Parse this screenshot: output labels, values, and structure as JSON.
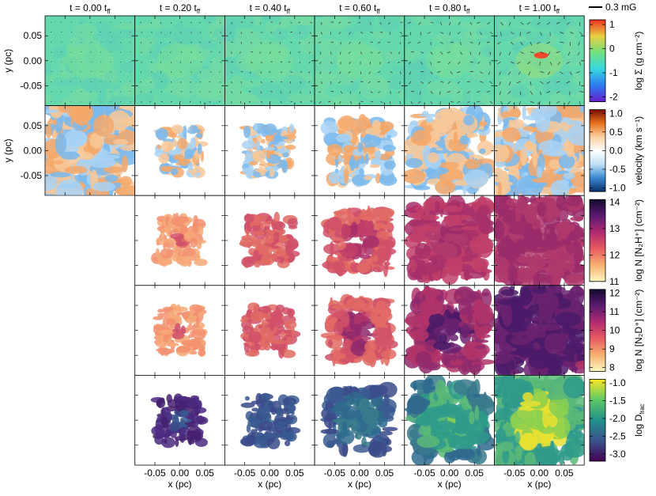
{
  "columns": [
    "t = 0.00 t",
    "t = 0.20 t",
    "t = 0.40 t",
    "t = 0.60 t",
    "t = 0.80 t",
    "t = 1.00 t"
  ],
  "column_sub": "ff",
  "scale_bar": "0.3 mG",
  "y_label": "y (pc)",
  "x_label": "x (pc)",
  "xlim": [
    -0.09,
    0.09
  ],
  "ylim": [
    -0.09,
    0.09
  ],
  "xticks": [
    {
      "value": -0.05,
      "label": "-0.05"
    },
    {
      "value": 0,
      "label": "0.00"
    },
    {
      "value": 0.05,
      "label": "0.05"
    }
  ],
  "yticks": [
    {
      "value": -0.05,
      "label": "-0.05"
    },
    {
      "value": 0,
      "label": "0.00"
    },
    {
      "value": 0.05,
      "label": "0.05"
    }
  ],
  "colorbars": [
    {
      "label": "log Σ (g cm⁻²)",
      "lim": [
        -2.2,
        1.2
      ],
      "ticks": [
        -2,
        -1,
        0,
        1
      ],
      "colors": [
        "#6a1fd0",
        "#2a7bf0",
        "#38d8e0",
        "#70e080",
        "#e8d040",
        "#f03020"
      ]
    },
    {
      "label": "velocity (km s⁻¹)",
      "lim": [
        -1.1,
        1.1
      ],
      "ticks": [
        {
          "value": -1,
          "label": "-1.0"
        },
        {
          "value": -0.5,
          "label": "-0.5"
        },
        {
          "value": 0,
          "label": "0.0"
        },
        {
          "value": 0.5,
          "label": "0.5"
        },
        {
          "value": 1,
          "label": "1.0"
        }
      ],
      "colors": [
        "#08306b",
        "#3a88d0",
        "#bfe0f4",
        "#ffffff",
        "#fbd0a0",
        "#e8701a",
        "#7a0d06"
      ]
    },
    {
      "label": "log N [N₂H⁺] (cm⁻²)",
      "lim": [
        11,
        14.1
      ],
      "ticks": [
        11,
        12,
        13,
        14
      ],
      "colors": [
        "#fcf8c0",
        "#f8b070",
        "#e85a60",
        "#b02a70",
        "#5a1a70",
        "#140a30"
      ]
    },
    {
      "label": "log N [N₂D⁺] (cm⁻²)",
      "lim": [
        7.8,
        12.2
      ],
      "ticks": [
        8,
        9,
        10,
        11,
        12
      ],
      "colors": [
        "#fcf8c0",
        "#f8b070",
        "#e85a60",
        "#b02a70",
        "#5a1a70",
        "#140a30"
      ]
    },
    {
      "label": "log D",
      "sub": "frac",
      "lim": [
        -3.2,
        -0.9
      ],
      "ticks": [
        {
          "value": -3,
          "label": "-3.0"
        },
        {
          "value": -2.5,
          "label": "-2.5"
        },
        {
          "value": -2,
          "label": "-2.0"
        },
        {
          "value": -1.5,
          "label": "-1.5"
        },
        {
          "value": -1,
          "label": "-1.0"
        }
      ],
      "colors": [
        "#440154",
        "#3b528b",
        "#21908c",
        "#5dc863",
        "#fde725"
      ]
    }
  ]
}
